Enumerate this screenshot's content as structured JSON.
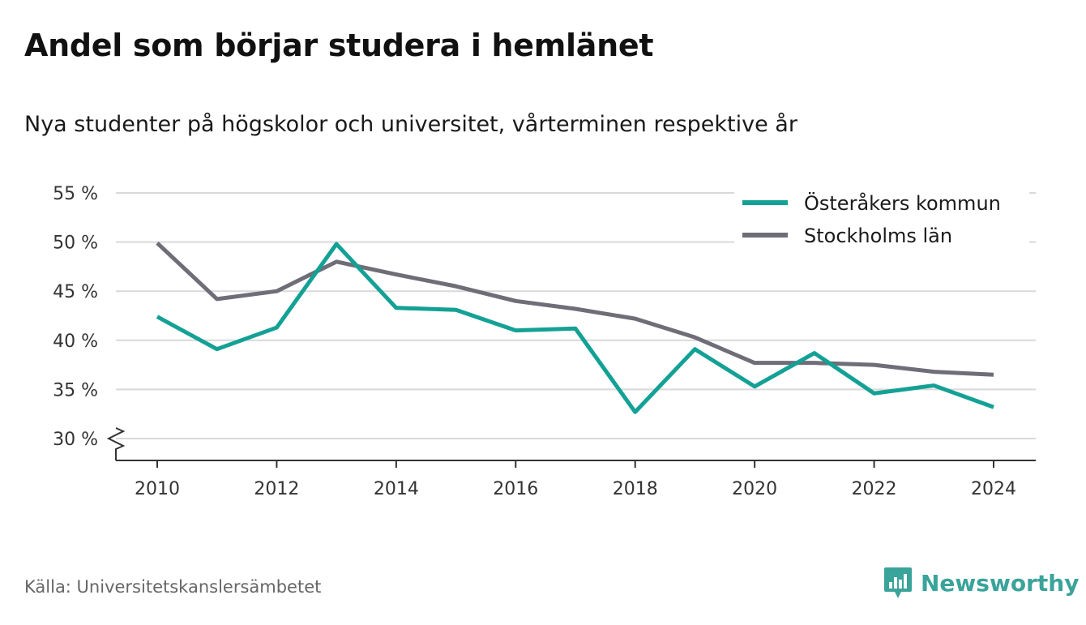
{
  "title": "Andel som börjar studera i hemlänet",
  "subtitle": "Nya studenter på högskolor och universitet, vårterminen respektive år",
  "source": "Källa: Universitetskanslersämbetet",
  "brand": {
    "name": "Newsworthy",
    "icon": "newsworthy-logo-icon",
    "color": "#3aa39a"
  },
  "chart_data": {
    "type": "line",
    "x": [
      2010,
      2011,
      2012,
      2013,
      2014,
      2015,
      2016,
      2017,
      2018,
      2019,
      2020,
      2021,
      2022,
      2023,
      2024
    ],
    "x_ticks": [
      "2010",
      "2012",
      "2014",
      "2016",
      "2018",
      "2020",
      "2022",
      "2024"
    ],
    "y_ticks": [
      "30 %",
      "35 %",
      "40 %",
      "45 %",
      "50 %",
      "55 %"
    ],
    "ylim": [
      30,
      55
    ],
    "y_axis_break": true,
    "grid": "horizontal",
    "legend_position": "top-right",
    "series": [
      {
        "name": "Österåkers kommun",
        "color": "#14a195",
        "values": [
          42.4,
          39.1,
          41.3,
          49.8,
          43.3,
          43.1,
          41.0,
          41.2,
          32.7,
          39.1,
          35.3,
          38.7,
          34.6,
          35.4,
          33.2
        ]
      },
      {
        "name": "Stockholms län",
        "color": "#6f6d77",
        "values": [
          49.9,
          44.2,
          45.0,
          48.0,
          46.7,
          45.5,
          44.0,
          43.2,
          42.2,
          40.3,
          37.7,
          37.7,
          37.5,
          36.8,
          36.5
        ]
      }
    ]
  }
}
